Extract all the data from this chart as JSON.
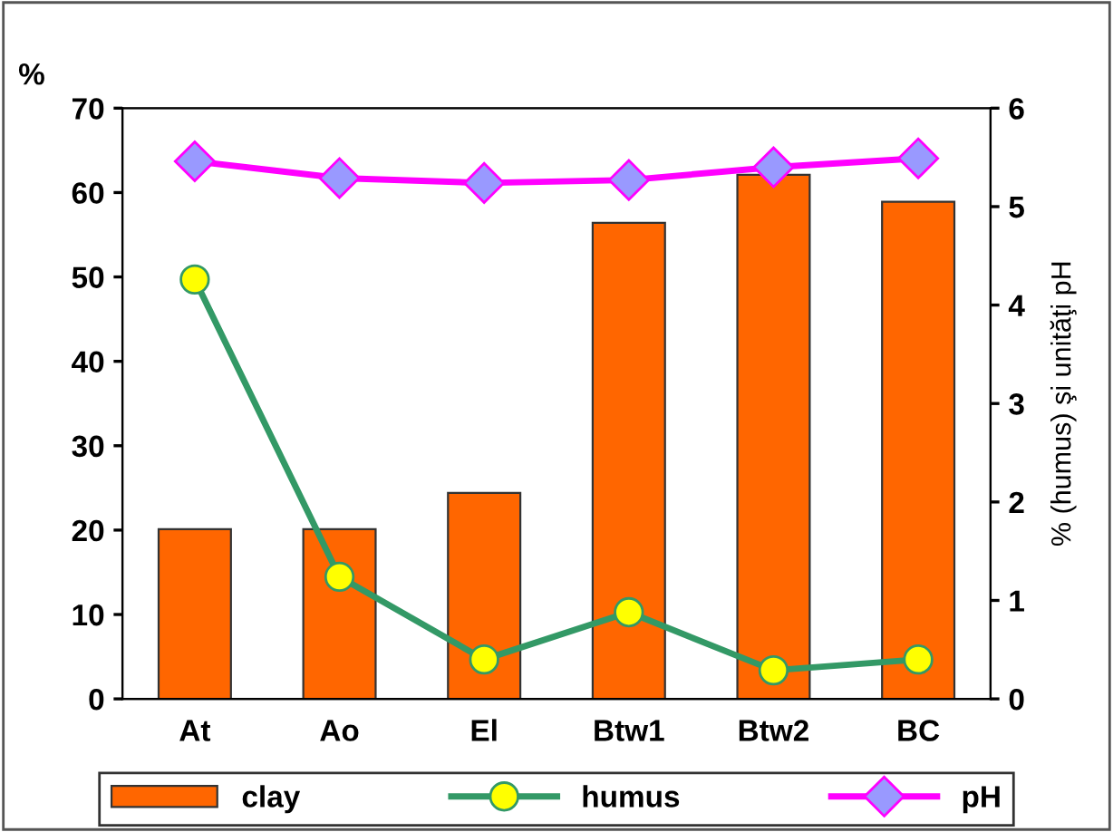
{
  "chart_data": {
    "type": "bar",
    "ylabel": "%",
    "y2label": "% (humus) şi unităţi pH",
    "categories": [
      "At",
      "Ao",
      "El",
      "Btw1",
      "Btw2",
      "BC"
    ],
    "series": [
      {
        "name": "clay",
        "color": "#ff6600",
        "values": [
          20.1,
          20.1,
          24.4,
          56.4,
          62.1,
          58.9
        ]
      },
      {
        "name": "humus",
        "type": "line",
        "axis": "y2",
        "color": "#339966",
        "marker": "circle",
        "values": [
          4.26,
          1.24,
          0.4,
          0.88,
          0.29,
          0.4
        ]
      },
      {
        "name": "pH",
        "type": "line",
        "axis": "y2",
        "color": "#ff00ff",
        "marker": "diamond",
        "values": [
          5.46,
          5.29,
          5.24,
          5.27,
          5.4,
          5.49
        ]
      }
    ],
    "ylim": [
      0,
      70
    ],
    "yticks": [
      0,
      10,
      20,
      30,
      40,
      50,
      60,
      70
    ],
    "y2lim": [
      0,
      6
    ],
    "y2ticks": [
      0,
      1,
      2,
      3,
      4,
      5,
      6
    ],
    "grid": false,
    "legend": "bottom"
  }
}
